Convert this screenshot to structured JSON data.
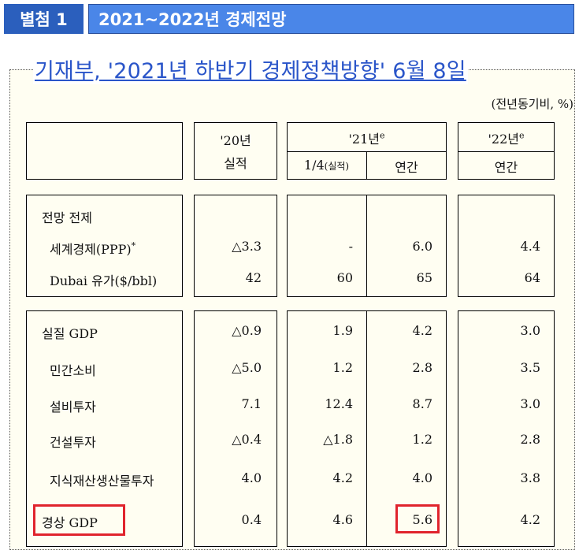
{
  "header": {
    "tag": "별첨 1",
    "title": "2021~2022년 경제전망"
  },
  "source_link": "기재부, '2021년 하반기 경제정책방향' 6월 8일",
  "unit_note": "(전년동기비, %)",
  "table_header": {
    "col_2020_line1": "'20년",
    "col_2020_line2": "실적",
    "col_2021_main": "'21년",
    "col_2021_sup": "e",
    "col_2021_q1": "1/4",
    "col_2021_q1_small": "(실적)",
    "col_2021_annual": "연간",
    "col_2022_main": "'22년",
    "col_2022_sup": "e",
    "col_2022_annual": "연간"
  },
  "sections": {
    "assumptions_title": "전망 전제",
    "rows_assumptions": [
      {
        "label": "세계경제(PPP)",
        "sup": "*",
        "y2020": "△3.3",
        "q1_2021": "-",
        "y2021": "6.0",
        "y2022": "4.4"
      },
      {
        "label": "Dubai 유가($/bbl)",
        "sup": "",
        "y2020": "42",
        "q1_2021": "60",
        "y2021": "65",
        "y2022": "64"
      }
    ],
    "rows_economy": [
      {
        "label": "실질 GDP",
        "y2020": "△0.9",
        "q1_2021": "1.9",
        "y2021": "4.2",
        "y2022": "3.0"
      },
      {
        "label": "민간소비",
        "y2020": "△5.0",
        "q1_2021": "1.2",
        "y2021": "2.8",
        "y2022": "3.5"
      },
      {
        "label": "설비투자",
        "y2020": "7.1",
        "q1_2021": "12.4",
        "y2021": "8.7",
        "y2022": "3.0"
      },
      {
        "label": "건설투자",
        "y2020": "△0.4",
        "q1_2021": "△1.8",
        "y2021": "1.2",
        "y2022": "2.8"
      },
      {
        "label": "지식재산생산물투자",
        "y2020": "4.0",
        "q1_2021": "4.2",
        "y2021": "4.0",
        "y2022": "3.8"
      },
      {
        "label": "경상 GDP",
        "y2020": "0.4",
        "q1_2021": "4.6",
        "y2021": "5.6",
        "y2022": "4.2"
      }
    ]
  },
  "colors": {
    "header_tag_bg": "#2b5fbd",
    "header_title_bg": "#4a86e8",
    "link": "#2a55c9",
    "highlight": "#e0242d",
    "frame_bg": "#fffef2"
  }
}
